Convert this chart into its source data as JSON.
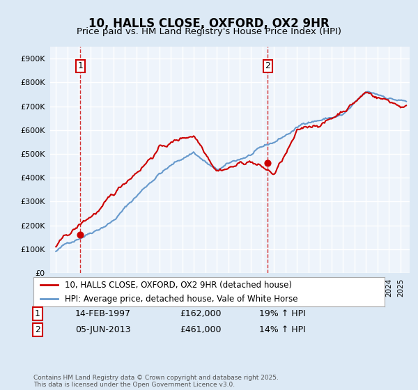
{
  "title": "10, HALLS CLOSE, OXFORD, OX2 9HR",
  "subtitle": "Price paid vs. HM Land Registry's House Price Index (HPI)",
  "legend_line1": "10, HALLS CLOSE, OXFORD, OX2 9HR (detached house)",
  "legend_line2": "HPI: Average price, detached house, Vale of White Horse",
  "annotation1_label": "1",
  "annotation1_date": "14-FEB-1997",
  "annotation1_price": "£162,000",
  "annotation1_hpi": "19% ↑ HPI",
  "annotation2_label": "2",
  "annotation2_date": "05-JUN-2013",
  "annotation2_price": "£461,000",
  "annotation2_hpi": "14% ↑ HPI",
  "footer": "Contains HM Land Registry data © Crown copyright and database right 2025.\nThis data is licensed under the Open Government Licence v3.0.",
  "sale1_year": 1997.12,
  "sale1_value": 162000,
  "sale2_year": 2013.43,
  "sale2_value": 461000,
  "ylim_max": 950000,
  "bg_color": "#dce9f5",
  "plot_bg": "#eef4fb",
  "red_color": "#cc0000",
  "blue_color": "#6699cc",
  "grid_color": "#ffffff"
}
